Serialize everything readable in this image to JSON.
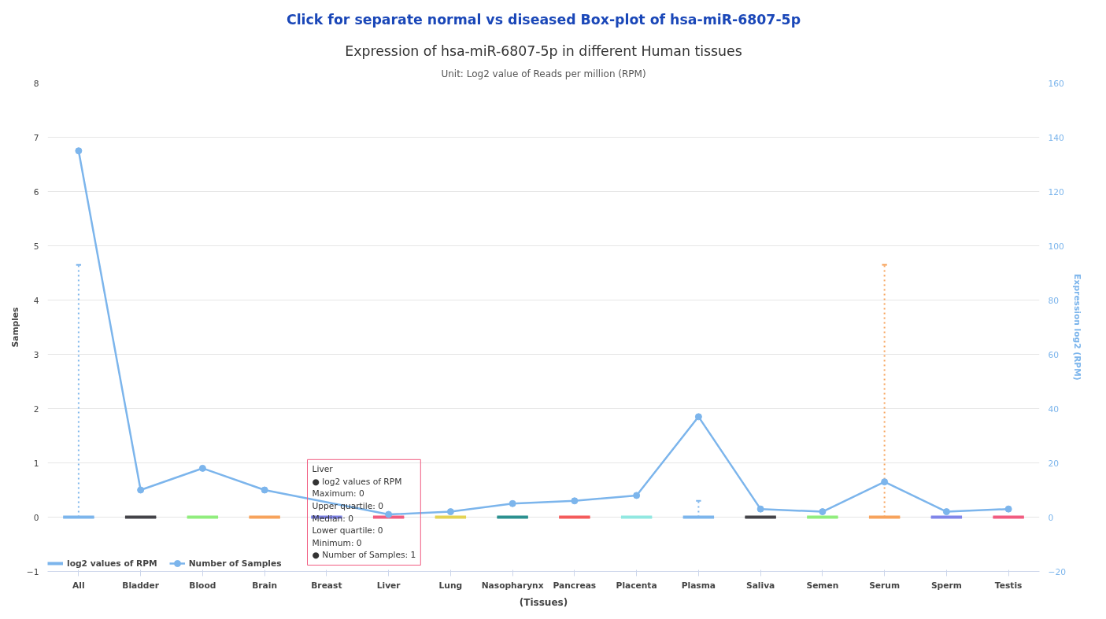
{
  "chart_data": {
    "type": "box",
    "title": "Expression of hsa-miR-6807-5p in different Human tissues",
    "subtitle": "Unit: Log2 value of Reads per million (RPM)",
    "xlabel": "(Tissues)",
    "ylabel": "Samples",
    "y2label": "Expression log2 (RPM)",
    "categories": [
      "All",
      "Bladder",
      "Blood",
      "Brain",
      "Breast",
      "Liver",
      "Lung",
      "Nasopharynx",
      "Pancreas",
      "Placenta",
      "Plasma",
      "Saliva",
      "Semen",
      "Serum",
      "Sperm",
      "Testis"
    ],
    "ylim": [
      -1,
      8
    ],
    "yticks": [
      -1,
      0,
      1,
      2,
      3,
      4,
      5,
      6,
      7,
      8
    ],
    "y2lim": [
      -20,
      160
    ],
    "y2ticks": [
      -20,
      0,
      20,
      40,
      60,
      80,
      100,
      120,
      140,
      160
    ],
    "grid": "y",
    "legend": "bottom left",
    "annotations": [
      "Click for separate normal vs diseased Box-plot of hsa-miR-6807-5p",
      "Liver\n● log2 values of RPM\nMaximum: 0\nUpper quartile: 0\nMedian: 0\nLower quartile: 0\nMinimum: 0\n● Number of Samples: 1"
    ],
    "series": [
      {
        "name": "log2 values of RPM",
        "line_style": "dotted",
        "colors": [
          "#7cb5ec",
          "#434348",
          "#90ed7d",
          "#f7a35c",
          "#8085e9",
          "#f15c80",
          "#e4d354",
          "#2b908f",
          "#f45b5b",
          "#91e8e1",
          "#7cb5ec",
          "#434348",
          "#90ed7d",
          "#f7a35c",
          "#8085e9",
          "#f15c80"
        ],
        "boxes": [
          {
            "low": 0,
            "q1": 0,
            "median": 0,
            "q3": 0,
            "high": 4.65
          },
          {
            "low": 0,
            "q1": 0,
            "median": 0,
            "q3": 0,
            "high": 0
          },
          {
            "low": 0,
            "q1": 0,
            "median": 0,
            "q3": 0,
            "high": 0
          },
          {
            "low": 0,
            "q1": 0,
            "median": 0,
            "q3": 0,
            "high": 0
          },
          {
            "low": 0,
            "q1": 0,
            "median": 0,
            "q3": 0,
            "high": 0
          },
          {
            "low": 0,
            "q1": 0,
            "median": 0,
            "q3": 0,
            "high": 0
          },
          {
            "low": 0,
            "q1": 0,
            "median": 0,
            "q3": 0,
            "high": 0
          },
          {
            "low": 0,
            "q1": 0,
            "median": 0,
            "q3": 0,
            "high": 0
          },
          {
            "low": 0,
            "q1": 0,
            "median": 0,
            "q3": 0,
            "high": 0
          },
          {
            "low": 0,
            "q1": 0,
            "median": 0,
            "q3": 0,
            "high": 0
          },
          {
            "low": 0,
            "q1": 0,
            "median": 0,
            "q3": 0,
            "high": 0.3
          },
          {
            "low": 0,
            "q1": 0,
            "median": 0,
            "q3": 0,
            "high": 0
          },
          {
            "low": 0,
            "q1": 0,
            "median": 0,
            "q3": 0,
            "high": 0
          },
          {
            "low": 0,
            "q1": 0,
            "median": 0,
            "q3": 0,
            "high": 4.65
          },
          {
            "low": 0,
            "q1": 0,
            "median": 0,
            "q3": 0,
            "high": 0
          },
          {
            "low": 0,
            "q1": 0,
            "median": 0,
            "q3": 0,
            "high": 0
          }
        ]
      },
      {
        "type": "line",
        "name": "Number of Samples",
        "color": "#7cb5ec",
        "axis": "y2",
        "marker": "circle",
        "line_style": "solid",
        "values": [
          135,
          10,
          18,
          10,
          null,
          1,
          2,
          5,
          6,
          8,
          37,
          3,
          2,
          13,
          2,
          3
        ]
      }
    ]
  }
}
